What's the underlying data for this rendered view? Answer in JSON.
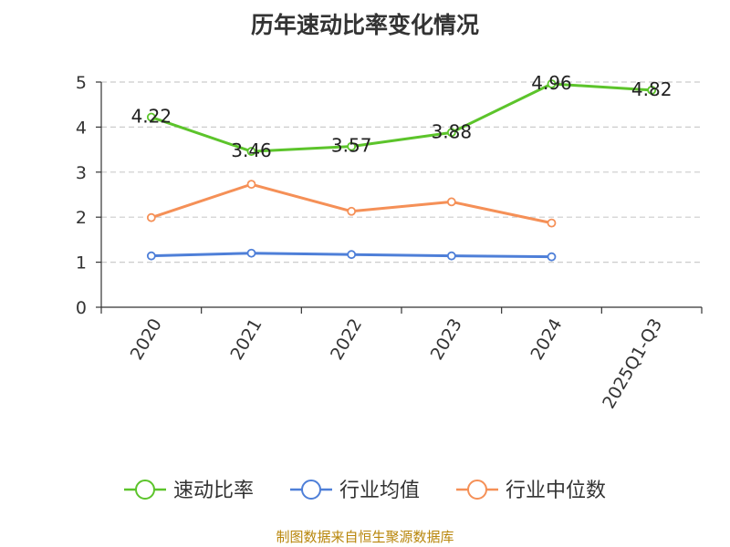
{
  "chart_data": {
    "type": "line",
    "title": "历年速动比率变化情况",
    "categories": [
      "2020",
      "2021",
      "2022",
      "2023",
      "2024",
      "2025Q1-Q3"
    ],
    "ylim": [
      0,
      5
    ],
    "yticks": [
      0,
      1,
      2,
      3,
      4,
      5
    ],
    "grid": true,
    "legend_position": "bottom",
    "series": [
      {
        "name": "速动比率",
        "color": "#5cc42b",
        "values": [
          4.22,
          3.46,
          3.57,
          3.88,
          4.96,
          4.82
        ],
        "show_labels": true
      },
      {
        "name": "行业均值",
        "color": "#4e7fd8",
        "values": [
          1.14,
          1.2,
          1.17,
          1.14,
          1.12,
          null
        ],
        "show_labels": false
      },
      {
        "name": "行业中位数",
        "color": "#f59057",
        "values": [
          1.99,
          2.73,
          2.13,
          2.34,
          1.87,
          null
        ],
        "show_labels": false
      }
    ]
  },
  "source_note": "制图数据来自恒生聚源数据库"
}
